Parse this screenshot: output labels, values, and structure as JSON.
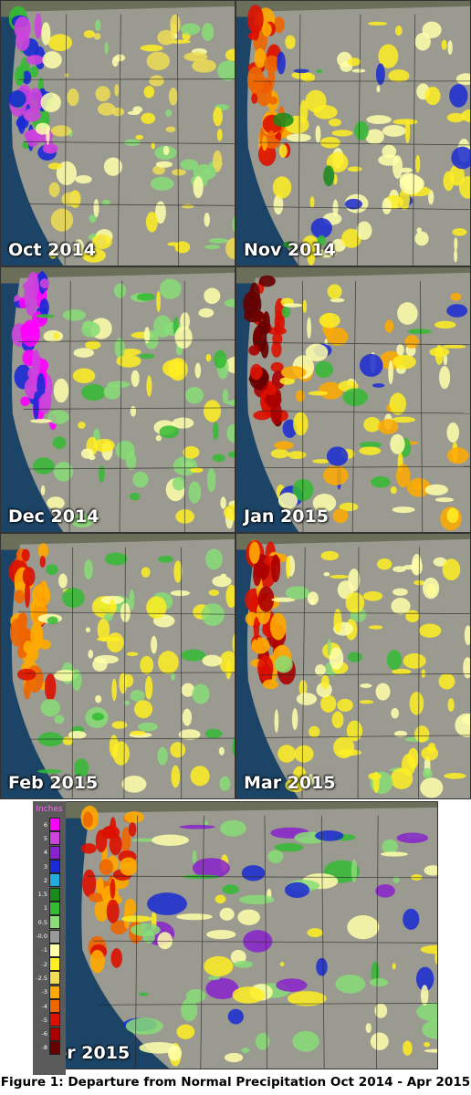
{
  "panels": [
    {
      "label": "Oct 2014"
    },
    {
      "label": "Nov 2014"
    },
    {
      "label": "Dec 2014"
    },
    {
      "label": "Jan 2015"
    },
    {
      "label": "Feb 2015"
    },
    {
      "label": "Mar 2015"
    },
    {
      "label": "Apr 2015"
    }
  ],
  "legend": {
    "title": "Inches",
    "entries": [
      {
        "value": "6",
        "color": "#ff00ff"
      },
      {
        "value": "5",
        "color": "#cc44dd"
      },
      {
        "value": "4",
        "color": "#8822cc"
      },
      {
        "value": "3",
        "color": "#1a2ad4"
      },
      {
        "value": "2",
        "color": "#22aadd"
      },
      {
        "value": "1.5",
        "color": "#1a8a1a"
      },
      {
        "value": "1",
        "color": "#33bb33"
      },
      {
        "value": "0.5",
        "color": "#88dd77"
      },
      {
        "value": "-0.0",
        "color": "#999999"
      },
      {
        "value": "-1",
        "color": "#ffffaa"
      },
      {
        "value": "-2",
        "color": "#ffee22"
      },
      {
        "value": "-2.5",
        "color": "#eedd55"
      },
      {
        "value": "-3",
        "color": "#ffaa00"
      },
      {
        "value": "-4",
        "color": "#ee6600"
      },
      {
        "value": "-5",
        "color": "#dd1100"
      },
      {
        "value": "-6",
        "color": "#aa0000"
      },
      {
        "value": "-8",
        "color": "#660000"
      }
    ]
  },
  "caption": "Figure 1: Departure from Normal Precipitation Oct 2014 - Apr 2015"
}
